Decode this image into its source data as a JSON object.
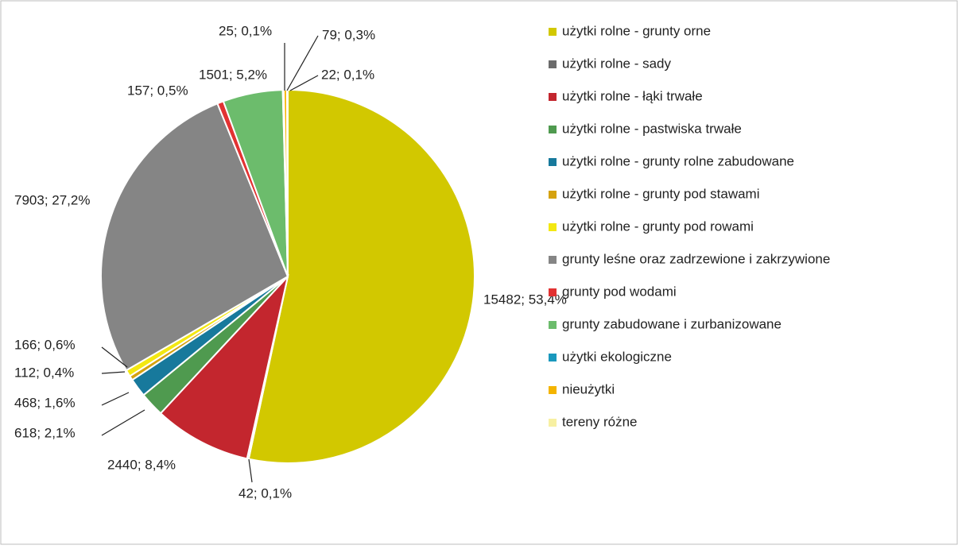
{
  "chart_data": {
    "type": "pie",
    "categories": [
      "użytki rolne - grunty orne",
      "użytki rolne - sady",
      "użytki rolne - łąki trwałe",
      "użytki rolne - pastwiska trwałe",
      "użytki rolne - grunty rolne zabudowane",
      "użytki rolne - grunty pod stawami",
      "użytki rolne - grunty pod rowami",
      "grunty leśne oraz zadrzewione i zakrzywione",
      "grunty pod wodami",
      "grunty zabudowane i zurbanizowane",
      "użytki ekologiczne",
      "nieużytki",
      "tereny różne"
    ],
    "values": [
      15482,
      42,
      2440,
      618,
      468,
      112,
      166,
      7903,
      157,
      1501,
      25,
      79,
      22
    ],
    "value_labels": [
      "15482; 53,4%",
      "42; 0,1%",
      "2440; 8,4%",
      "618; 2,1%",
      "468; 1,6%",
      "112; 0,4%",
      "166; 0,6%",
      "7903; 27,2%",
      "157; 0,5%",
      "1501; 5,2%",
      "25; 0,1%",
      "79; 0,3%",
      "22; 0,1%"
    ],
    "colors": [
      "#d2c800",
      "#6b6b6b",
      "#c3262e",
      "#4f9a4f",
      "#17799c",
      "#d5a20f",
      "#f3e812",
      "#858585",
      "#e23232",
      "#6cbc6c",
      "#1a98bd",
      "#f4b400",
      "#f7f0a2"
    ],
    "legend": "right"
  }
}
